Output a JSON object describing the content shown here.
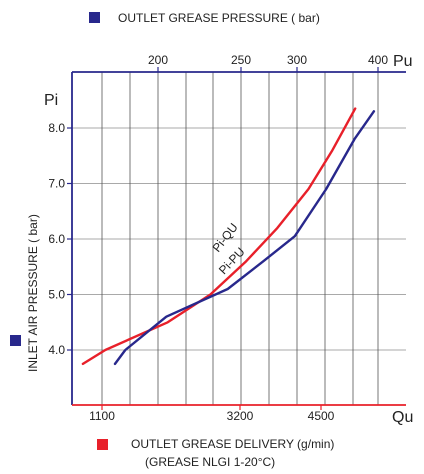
{
  "legend": {
    "top": {
      "label": "OUTLET GREASE PRESSURE ( bar)",
      "color": "#28288c"
    },
    "bottom": {
      "label_line1": "OUTLET GREASE DELIVERY (g/min)",
      "label_line2": "(GREASE NLGI 1-20°C)",
      "color": "#e8202a"
    },
    "left": {
      "label": "INLET AIR PRESSURE ( bar)",
      "color": "#28288c"
    }
  },
  "colors": {
    "red": "#e8202a",
    "blue": "#28288c",
    "grid": "#555555",
    "axis_text": "#222222"
  },
  "chart_data": {
    "type": "line",
    "top_axis": {
      "label": "Pu",
      "ticks": [
        "200",
        "250",
        "300",
        "400"
      ]
    },
    "bottom_axis": {
      "label": "Qu",
      "ticks": [
        "1100",
        "3200",
        "4500"
      ]
    },
    "left_axis": {
      "label": "Pi",
      "ticks": [
        "4.0",
        "5.0",
        "6.0",
        "7.0",
        "8.0"
      ]
    },
    "ylim": [
      3.0,
      9.0
    ],
    "grid": true,
    "series": [
      {
        "name": "Pi-QU",
        "color": "#e8202a",
        "axis": "Qu",
        "points": [
          [
            400,
            3.75
          ],
          [
            1150,
            4.0
          ],
          [
            2100,
            4.5
          ],
          [
            2750,
            5.0
          ],
          [
            3300,
            5.6
          ],
          [
            3800,
            6.2
          ],
          [
            4300,
            6.9
          ],
          [
            4700,
            7.6
          ],
          [
            5100,
            8.35
          ]
        ]
      },
      {
        "name": "Pi-PU",
        "color": "#28288c",
        "axis": "Pu",
        "points": [
          [
            150,
            3.75
          ],
          [
            162,
            4.0
          ],
          [
            205,
            4.6
          ],
          [
            242,
            5.1
          ],
          [
            270,
            5.6
          ],
          [
            298,
            6.05
          ],
          [
            336,
            6.9
          ],
          [
            371,
            7.8
          ],
          [
            395,
            8.3
          ]
        ]
      }
    ]
  }
}
